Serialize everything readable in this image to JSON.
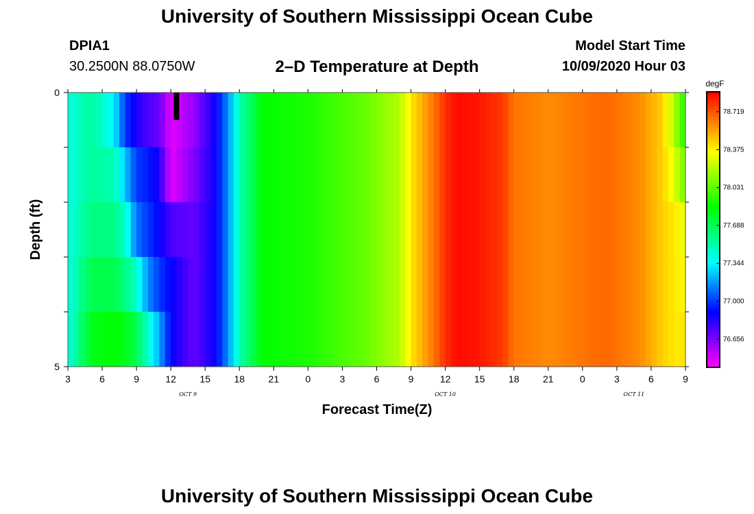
{
  "header": {
    "title": "University of Southern Mississippi Ocean Cube",
    "station_id": "DPIA1",
    "station_coords": "30.2500N 88.0750W",
    "plot_title": "2–D Temperature at Depth",
    "model_start_label": "Model Start Time",
    "model_start_value": "10/09/2020 Hour 03"
  },
  "footer": {
    "title": "University of Southern Mississippi Ocean Cube"
  },
  "chart_data": {
    "type": "heatmap",
    "xlabel": "Forecast Time(Z)",
    "ylabel": "Depth (ft)",
    "ylim": [
      0,
      5
    ],
    "y_ticks": [
      "0",
      "5"
    ],
    "x_tick_labels": [
      "3",
      "6",
      "9",
      "12",
      "15",
      "18",
      "21",
      "0",
      "3",
      "6",
      "9",
      "12",
      "15",
      "18",
      "21",
      "0",
      "3",
      "6",
      "9"
    ],
    "date_labels": [
      {
        "text": "OCT 9",
        "at_tick": 3.5
      },
      {
        "text": "OCT 10",
        "at_tick": 11
      },
      {
        "text": "OCT 11",
        "at_tick": 16.5
      }
    ],
    "colorbar": {
      "unit": "degF",
      "range": [
        76.4,
        78.9
      ],
      "tick_values": [
        76.656,
        77.0,
        77.344,
        77.688,
        78.031,
        78.375,
        78.719
      ],
      "tick_labels": [
        "76.656",
        "77.000",
        "77.344",
        "77.688",
        "78.031",
        "78.375",
        "78.719"
      ]
    },
    "depth_bins": [
      0.5,
      1.5,
      2.5,
      3.5,
      4.5
    ],
    "hours_from_oct9_0z": [
      3,
      57
    ],
    "column_profiles": [
      {
        "hour": 3,
        "temps": [
          77.4,
          77.4,
          77.4,
          77.4,
          77.4
        ]
      },
      {
        "hour": 5,
        "temps": [
          77.55,
          77.55,
          77.6,
          77.7,
          77.8
        ]
      },
      {
        "hour": 7,
        "temps": [
          77.35,
          77.5,
          77.6,
          77.7,
          77.85
        ]
      },
      {
        "hour": 8,
        "temps": [
          77.0,
          77.25,
          77.45,
          77.6,
          77.8
        ]
      },
      {
        "hour": 9,
        "temps": [
          76.85,
          77.0,
          77.1,
          77.45,
          77.7
        ]
      },
      {
        "hour": 10,
        "temps": [
          76.75,
          76.95,
          77.0,
          77.15,
          77.45
        ]
      },
      {
        "hour": 11,
        "temps": [
          76.7,
          76.85,
          76.9,
          77.0,
          77.2
        ]
      },
      {
        "hour": 12,
        "temps": [
          76.45,
          76.45,
          76.75,
          76.9,
          76.9
        ]
      },
      {
        "hour": 14,
        "temps": [
          76.6,
          76.65,
          76.7,
          76.7,
          76.7
        ]
      },
      {
        "hour": 16,
        "temps": [
          76.9,
          76.9,
          76.9,
          76.9,
          76.9
        ]
      },
      {
        "hour": 17,
        "temps": [
          77.15,
          77.15,
          77.15,
          77.15,
          77.15
        ]
      },
      {
        "hour": 18,
        "temps": [
          77.5,
          77.5,
          77.5,
          77.5,
          77.5
        ]
      },
      {
        "hour": 20,
        "temps": [
          77.85,
          77.85,
          77.85,
          77.85,
          77.85
        ]
      },
      {
        "hour": 24,
        "temps": [
          77.9,
          77.9,
          77.9,
          77.9,
          77.9
        ]
      },
      {
        "hour": 29,
        "temps": [
          78.05,
          78.05,
          78.05,
          78.05,
          78.05
        ]
      },
      {
        "hour": 32,
        "temps": [
          78.2,
          78.2,
          78.2,
          78.2,
          78.2
        ]
      },
      {
        "hour": 33,
        "temps": [
          78.4,
          78.4,
          78.4,
          78.4,
          78.4
        ]
      },
      {
        "hour": 35,
        "temps": [
          78.65,
          78.65,
          78.65,
          78.65,
          78.65
        ]
      },
      {
        "hour": 36,
        "temps": [
          78.8,
          78.8,
          78.8,
          78.8,
          78.8
        ]
      },
      {
        "hour": 37,
        "temps": [
          78.88,
          78.88,
          78.88,
          78.88,
          78.88
        ]
      },
      {
        "hour": 39,
        "temps": [
          78.85,
          78.85,
          78.85,
          78.85,
          78.85
        ]
      },
      {
        "hour": 41,
        "temps": [
          78.78,
          78.78,
          78.78,
          78.78,
          78.78
        ]
      },
      {
        "hour": 42,
        "temps": [
          78.65,
          78.65,
          78.65,
          78.65,
          78.65
        ]
      },
      {
        "hour": 45,
        "temps": [
          78.6,
          78.6,
          78.6,
          78.6,
          78.6
        ]
      },
      {
        "hour": 50,
        "temps": [
          78.68,
          78.68,
          78.68,
          78.68,
          78.68
        ]
      },
      {
        "hour": 53,
        "temps": [
          78.6,
          78.6,
          78.6,
          78.6,
          78.6
        ]
      },
      {
        "hour": 55,
        "temps": [
          78.45,
          78.45,
          78.45,
          78.45,
          78.45
        ]
      },
      {
        "hour": 56,
        "temps": [
          78.2,
          78.3,
          78.4,
          78.4,
          78.4
        ]
      },
      {
        "hour": 57,
        "temps": [
          77.9,
          78.05,
          78.3,
          78.35,
          78.4
        ]
      }
    ],
    "missing_data": [
      {
        "hour": 12.5,
        "depth_from": 0,
        "depth_to": 0.5
      }
    ]
  }
}
